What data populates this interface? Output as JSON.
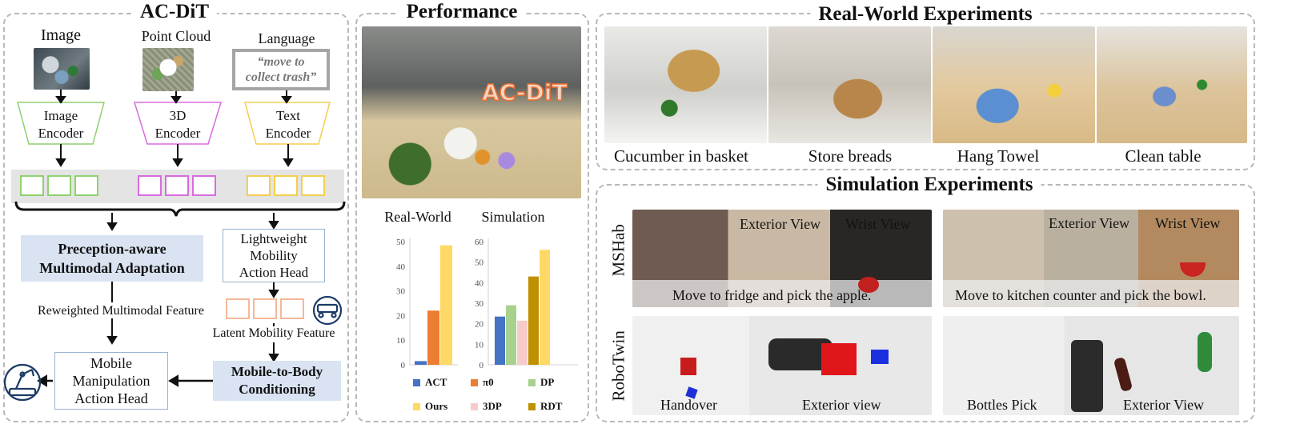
{
  "left_panel": {
    "title": "AC-DiT",
    "inputs": {
      "image": "Image",
      "point_cloud": "Point Cloud",
      "language": "Language",
      "instruction": "“move to collect trash”"
    },
    "encoders": {
      "image": "Image Encoder",
      "three_d": "3D Encoder",
      "text": "Text Encoder"
    },
    "adaptation_module": "Preception-aware Multimodal Adaptation",
    "mobility_head": "Lightweight Mobility Action Head",
    "reweighted_feature": "Reweighted Multimodal Feature",
    "latent_feature": "Latent Mobility Feature",
    "conditioning_module": "Mobile-to-Body Conditioning",
    "manipulation_head": "Mobile Manipulation Action Head",
    "colors": {
      "image": "#8fd16f",
      "three_d": "#d86be0",
      "text": "#f3cf4e",
      "latent": "#f4b89a",
      "module_fill": "#d9e3f1"
    }
  },
  "middle_panel": {
    "title": "Performance",
    "hero_overlay": "AC-DiT",
    "chart_titles": [
      "Real-World",
      "Simulation"
    ]
  },
  "chart_data": [
    {
      "type": "bar",
      "title": "Real-World",
      "ylim": [
        0,
        50
      ],
      "yticks": [
        0,
        10,
        20,
        30,
        40,
        50
      ],
      "series": [
        {
          "name": "ACT",
          "value": 1.5,
          "color": "#4472c4"
        },
        {
          "name": "π0",
          "value": 22,
          "color": "#ed7d31"
        },
        {
          "name": "Ours",
          "value": 48.5,
          "color": "#ffd966"
        }
      ]
    },
    {
      "type": "bar",
      "title": "Simulation",
      "ylim": [
        0,
        60
      ],
      "yticks": [
        0,
        10,
        20,
        30,
        40,
        50,
        60
      ],
      "series": [
        {
          "name": "ACT",
          "value": 23.5,
          "color": "#4472c4"
        },
        {
          "name": "DP",
          "value": 29,
          "color": "#a9d18e"
        },
        {
          "name": "3DP",
          "value": 21.5,
          "color": "#f8cbcb"
        },
        {
          "name": "RDT",
          "value": 43,
          "color": "#bf9000"
        },
        {
          "name": "Ours",
          "value": 56,
          "color": "#ffd966"
        }
      ]
    }
  ],
  "legend": [
    {
      "label": "ACT",
      "color": "#4472c4"
    },
    {
      "label": "π0",
      "color": "#ed7d31"
    },
    {
      "label": "DP",
      "color": "#a9d18e"
    },
    {
      "label": "Ours",
      "color": "#ffd966"
    },
    {
      "label": "3DP",
      "color": "#f8cbcb"
    },
    {
      "label": "RDT",
      "color": "#bf9000"
    }
  ],
  "real_world": {
    "title": "Real-World Experiments",
    "tasks": [
      "Cucumber in basket",
      "Store breads",
      "Hang Towel",
      "Clean table"
    ]
  },
  "simulation": {
    "title": "Simulation Experiments",
    "mshab": {
      "label": "MSHab",
      "view_labels": [
        "Exterior View",
        "Wrist View"
      ],
      "tasks": [
        "Move to fridge and pick the apple.",
        "Move to kitchen counter and pick the bowl."
      ]
    },
    "robotwin": {
      "label": "RoboTwin",
      "tasks": [
        "Handover",
        "Bottles Pick"
      ],
      "views": [
        "Exterior view",
        "Exterior View"
      ]
    }
  }
}
